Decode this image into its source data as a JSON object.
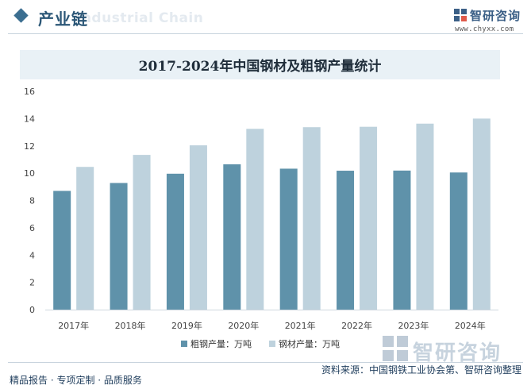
{
  "header": {
    "title": "产业链",
    "watermark": "Industrial Chain",
    "brand_name": "智研咨询",
    "brand_url": "www.chyxx.com"
  },
  "chart_data": {
    "type": "bar",
    "title": "2017-2024年中国钢材及粗钢产量统计",
    "categories": [
      "2017年",
      "2018年",
      "2019年",
      "2020年",
      "2021年",
      "2022年",
      "2023年",
      "2024年"
    ],
    "series": [
      {
        "name": "粗钢产量：万吨",
        "color": "#5f92aa",
        "values": [
          8.7,
          9.28,
          9.96,
          10.65,
          10.33,
          10.18,
          10.19,
          10.05
        ]
      },
      {
        "name": "钢材产量：万吨",
        "color": "#bed2dd",
        "values": [
          10.46,
          11.34,
          12.04,
          13.25,
          13.37,
          13.4,
          13.63,
          14.0
        ]
      }
    ],
    "yticks": [
      "0",
      "2",
      "4",
      "6",
      "8",
      "10",
      "12",
      "14",
      "16"
    ],
    "ylim": [
      0,
      16
    ],
    "xlabel": "",
    "ylabel": ""
  },
  "watermark_brand": "智研咨询",
  "footer": {
    "left": "精品报告 · 专项定制 · 品质服务",
    "right": "资料来源：中国钢铁工业协会第、智研咨询整理"
  }
}
